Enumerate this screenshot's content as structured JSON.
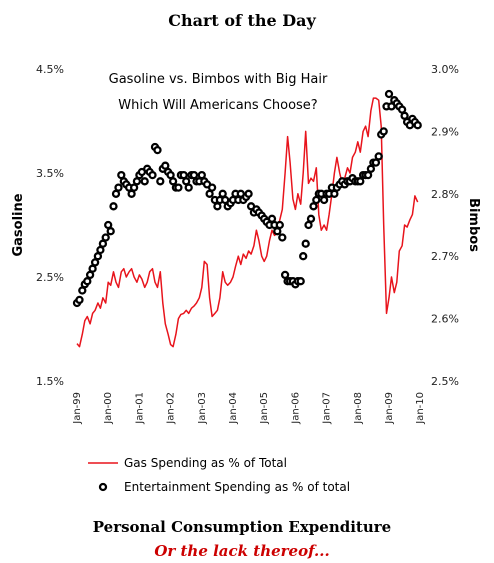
{
  "chart_data": {
    "type": "line",
    "title": "Chart of the Day",
    "annotation": [
      "Gasoline vs. Bimbos with Big Hair",
      "Which Will Americans Choose?"
    ],
    "footer_title": "Personal Consumption Expenditure",
    "footer_subtitle": "Or the lack thereof...",
    "ylabel_left": "Gasoline",
    "ylabel_right": "Bimbos",
    "ylim_left": [
      1.5,
      4.5
    ],
    "ylim_right": [
      2.5,
      3.0
    ],
    "yticks_left": [
      "1.5%",
      "2.5%",
      "3.5%",
      "4.5%"
    ],
    "yticks_right": [
      "2.5%",
      "2.6%",
      "2.7%",
      "2.8%",
      "2.9%",
      "3.0%"
    ],
    "xticks": [
      "Jan-99",
      "Jan-00",
      "Jan-01",
      "Jan-02",
      "Jan-03",
      "Jan-04",
      "Jan-05",
      "Jan-06",
      "Jan-07",
      "Jan-08",
      "Jan-09",
      "Jan-10"
    ],
    "grid": false,
    "legend_position": "bottom",
    "colors": {
      "gas": "#e8141c",
      "entertainment": "#000000",
      "subtitle": "#cc0000"
    },
    "series": [
      {
        "name": "Gas Spending as % of Total",
        "axis": "left",
        "style": "line",
        "points": [
          [
            1999.0,
            1.86
          ],
          [
            1999.08,
            1.83
          ],
          [
            1999.17,
            1.95
          ],
          [
            1999.25,
            2.08
          ],
          [
            1999.33,
            2.12
          ],
          [
            1999.42,
            2.05
          ],
          [
            1999.5,
            2.15
          ],
          [
            1999.58,
            2.18
          ],
          [
            1999.67,
            2.25
          ],
          [
            1999.75,
            2.2
          ],
          [
            1999.83,
            2.3
          ],
          [
            1999.92,
            2.25
          ],
          [
            2000.0,
            2.45
          ],
          [
            2000.08,
            2.42
          ],
          [
            2000.17,
            2.55
          ],
          [
            2000.25,
            2.45
          ],
          [
            2000.33,
            2.4
          ],
          [
            2000.42,
            2.55
          ],
          [
            2000.5,
            2.58
          ],
          [
            2000.58,
            2.5
          ],
          [
            2000.67,
            2.55
          ],
          [
            2000.75,
            2.58
          ],
          [
            2000.83,
            2.5
          ],
          [
            2000.92,
            2.45
          ],
          [
            2001.0,
            2.52
          ],
          [
            2001.08,
            2.48
          ],
          [
            2001.17,
            2.4
          ],
          [
            2001.25,
            2.45
          ],
          [
            2001.33,
            2.55
          ],
          [
            2001.42,
            2.58
          ],
          [
            2001.5,
            2.45
          ],
          [
            2001.58,
            2.4
          ],
          [
            2001.67,
            2.55
          ],
          [
            2001.75,
            2.25
          ],
          [
            2001.83,
            2.05
          ],
          [
            2001.92,
            1.95
          ],
          [
            2002.0,
            1.85
          ],
          [
            2002.08,
            1.83
          ],
          [
            2002.17,
            1.95
          ],
          [
            2002.25,
            2.1
          ],
          [
            2002.33,
            2.14
          ],
          [
            2002.42,
            2.15
          ],
          [
            2002.5,
            2.18
          ],
          [
            2002.58,
            2.15
          ],
          [
            2002.67,
            2.2
          ],
          [
            2002.75,
            2.22
          ],
          [
            2002.83,
            2.25
          ],
          [
            2002.92,
            2.3
          ],
          [
            2003.0,
            2.4
          ],
          [
            2003.08,
            2.65
          ],
          [
            2003.17,
            2.62
          ],
          [
            2003.25,
            2.3
          ],
          [
            2003.33,
            2.12
          ],
          [
            2003.42,
            2.15
          ],
          [
            2003.5,
            2.18
          ],
          [
            2003.58,
            2.3
          ],
          [
            2003.67,
            2.55
          ],
          [
            2003.75,
            2.45
          ],
          [
            2003.83,
            2.42
          ],
          [
            2003.92,
            2.45
          ],
          [
            2004.0,
            2.5
          ],
          [
            2004.08,
            2.6
          ],
          [
            2004.17,
            2.7
          ],
          [
            2004.25,
            2.62
          ],
          [
            2004.33,
            2.72
          ],
          [
            2004.42,
            2.68
          ],
          [
            2004.5,
            2.75
          ],
          [
            2004.58,
            2.72
          ],
          [
            2004.67,
            2.8
          ],
          [
            2004.75,
            2.95
          ],
          [
            2004.83,
            2.85
          ],
          [
            2004.92,
            2.7
          ],
          [
            2005.0,
            2.65
          ],
          [
            2005.08,
            2.7
          ],
          [
            2005.17,
            2.85
          ],
          [
            2005.25,
            2.95
          ],
          [
            2005.33,
            2.9
          ],
          [
            2005.42,
            2.92
          ],
          [
            2005.5,
            3.05
          ],
          [
            2005.58,
            3.15
          ],
          [
            2005.67,
            3.5
          ],
          [
            2005.75,
            3.85
          ],
          [
            2005.83,
            3.6
          ],
          [
            2005.92,
            3.25
          ],
          [
            2006.0,
            3.15
          ],
          [
            2006.08,
            3.3
          ],
          [
            2006.17,
            3.2
          ],
          [
            2006.25,
            3.5
          ],
          [
            2006.33,
            3.9
          ],
          [
            2006.42,
            3.4
          ],
          [
            2006.5,
            3.45
          ],
          [
            2006.58,
            3.42
          ],
          [
            2006.67,
            3.55
          ],
          [
            2006.75,
            3.1
          ],
          [
            2006.83,
            2.95
          ],
          [
            2006.92,
            3.0
          ],
          [
            2007.0,
            2.95
          ],
          [
            2007.08,
            3.1
          ],
          [
            2007.17,
            3.3
          ],
          [
            2007.25,
            3.5
          ],
          [
            2007.33,
            3.65
          ],
          [
            2007.42,
            3.5
          ],
          [
            2007.5,
            3.4
          ],
          [
            2007.58,
            3.45
          ],
          [
            2007.67,
            3.55
          ],
          [
            2007.75,
            3.5
          ],
          [
            2007.83,
            3.65
          ],
          [
            2007.92,
            3.7
          ],
          [
            2008.0,
            3.8
          ],
          [
            2008.08,
            3.7
          ],
          [
            2008.17,
            3.9
          ],
          [
            2008.25,
            3.95
          ],
          [
            2008.33,
            3.85
          ],
          [
            2008.42,
            4.1
          ],
          [
            2008.5,
            4.22
          ],
          [
            2008.58,
            4.22
          ],
          [
            2008.67,
            4.2
          ],
          [
            2008.75,
            3.95
          ],
          [
            2008.83,
            3.0
          ],
          [
            2008.92,
            2.15
          ],
          [
            2009.0,
            2.3
          ],
          [
            2009.08,
            2.5
          ],
          [
            2009.17,
            2.35
          ],
          [
            2009.25,
            2.45
          ],
          [
            2009.33,
            2.75
          ],
          [
            2009.42,
            2.8
          ],
          [
            2009.5,
            3.0
          ],
          [
            2009.58,
            2.98
          ],
          [
            2009.67,
            3.05
          ],
          [
            2009.75,
            3.1
          ],
          [
            2009.83,
            3.28
          ],
          [
            2009.92,
            3.22
          ]
        ]
      },
      {
        "name": "Entertainment Spending as % of total",
        "axis": "right",
        "style": "markers",
        "points": [
          [
            1999.0,
            2.625
          ],
          [
            1999.08,
            2.63
          ],
          [
            1999.17,
            2.645
          ],
          [
            1999.25,
            2.655
          ],
          [
            1999.33,
            2.66
          ],
          [
            1999.42,
            2.67
          ],
          [
            1999.5,
            2.68
          ],
          [
            1999.58,
            2.69
          ],
          [
            1999.67,
            2.7
          ],
          [
            1999.75,
            2.71
          ],
          [
            1999.83,
            2.72
          ],
          [
            1999.92,
            2.73
          ],
          [
            2000.0,
            2.75
          ],
          [
            2000.08,
            2.74
          ],
          [
            2000.17,
            2.78
          ],
          [
            2000.25,
            2.8
          ],
          [
            2000.33,
            2.81
          ],
          [
            2000.42,
            2.83
          ],
          [
            2000.5,
            2.82
          ],
          [
            2000.58,
            2.815
          ],
          [
            2000.67,
            2.81
          ],
          [
            2000.75,
            2.8
          ],
          [
            2000.83,
            2.81
          ],
          [
            2000.92,
            2.82
          ],
          [
            2001.0,
            2.83
          ],
          [
            2001.08,
            2.835
          ],
          [
            2001.17,
            2.82
          ],
          [
            2001.25,
            2.84
          ],
          [
            2001.33,
            2.835
          ],
          [
            2001.42,
            2.83
          ],
          [
            2001.5,
            2.875
          ],
          [
            2001.58,
            2.87
          ],
          [
            2001.67,
            2.82
          ],
          [
            2001.75,
            2.84
          ],
          [
            2001.83,
            2.845
          ],
          [
            2001.92,
            2.835
          ],
          [
            2002.0,
            2.83
          ],
          [
            2002.08,
            2.82
          ],
          [
            2002.17,
            2.81
          ],
          [
            2002.25,
            2.81
          ],
          [
            2002.33,
            2.83
          ],
          [
            2002.42,
            2.83
          ],
          [
            2002.5,
            2.82
          ],
          [
            2002.58,
            2.81
          ],
          [
            2002.67,
            2.83
          ],
          [
            2002.75,
            2.83
          ],
          [
            2002.83,
            2.82
          ],
          [
            2002.92,
            2.82
          ],
          [
            2003.0,
            2.83
          ],
          [
            2003.08,
            2.82
          ],
          [
            2003.17,
            2.815
          ],
          [
            2003.25,
            2.8
          ],
          [
            2003.33,
            2.81
          ],
          [
            2003.42,
            2.79
          ],
          [
            2003.5,
            2.78
          ],
          [
            2003.58,
            2.79
          ],
          [
            2003.67,
            2.8
          ],
          [
            2003.75,
            2.79
          ],
          [
            2003.83,
            2.78
          ],
          [
            2003.92,
            2.785
          ],
          [
            2004.0,
            2.79
          ],
          [
            2004.08,
            2.8
          ],
          [
            2004.17,
            2.79
          ],
          [
            2004.25,
            2.8
          ],
          [
            2004.33,
            2.79
          ],
          [
            2004.42,
            2.795
          ],
          [
            2004.5,
            2.8
          ],
          [
            2004.58,
            2.78
          ],
          [
            2004.67,
            2.77
          ],
          [
            2004.75,
            2.775
          ],
          [
            2004.83,
            2.77
          ],
          [
            2004.92,
            2.765
          ],
          [
            2005.0,
            2.76
          ],
          [
            2005.08,
            2.755
          ],
          [
            2005.17,
            2.75
          ],
          [
            2005.25,
            2.76
          ],
          [
            2005.33,
            2.75
          ],
          [
            2005.42,
            2.74
          ],
          [
            2005.5,
            2.75
          ],
          [
            2005.58,
            2.73
          ],
          [
            2005.67,
            2.67
          ],
          [
            2005.75,
            2.66
          ],
          [
            2005.83,
            2.66
          ],
          [
            2005.92,
            2.66
          ],
          [
            2006.0,
            2.655
          ],
          [
            2006.08,
            2.66
          ],
          [
            2006.17,
            2.66
          ],
          [
            2006.25,
            2.7
          ],
          [
            2006.33,
            2.72
          ],
          [
            2006.42,
            2.75
          ],
          [
            2006.5,
            2.76
          ],
          [
            2006.58,
            2.78
          ],
          [
            2006.67,
            2.79
          ],
          [
            2006.75,
            2.8
          ],
          [
            2006.83,
            2.8
          ],
          [
            2006.92,
            2.79
          ],
          [
            2007.0,
            2.8
          ],
          [
            2007.08,
            2.8
          ],
          [
            2007.17,
            2.81
          ],
          [
            2007.25,
            2.8
          ],
          [
            2007.33,
            2.81
          ],
          [
            2007.42,
            2.815
          ],
          [
            2007.5,
            2.82
          ],
          [
            2007.58,
            2.815
          ],
          [
            2007.67,
            2.82
          ],
          [
            2007.75,
            2.82
          ],
          [
            2007.83,
            2.825
          ],
          [
            2007.92,
            2.82
          ],
          [
            2008.0,
            2.82
          ],
          [
            2008.08,
            2.82
          ],
          [
            2008.17,
            2.83
          ],
          [
            2008.25,
            2.83
          ],
          [
            2008.33,
            2.83
          ],
          [
            2008.42,
            2.84
          ],
          [
            2008.5,
            2.85
          ],
          [
            2008.58,
            2.85
          ],
          [
            2008.67,
            2.86
          ],
          [
            2008.75,
            2.895
          ],
          [
            2008.83,
            2.9
          ],
          [
            2008.92,
            2.94
          ],
          [
            2009.0,
            2.96
          ],
          [
            2009.08,
            2.94
          ],
          [
            2009.17,
            2.95
          ],
          [
            2009.25,
            2.945
          ],
          [
            2009.33,
            2.94
          ],
          [
            2009.42,
            2.935
          ],
          [
            2009.5,
            2.925
          ],
          [
            2009.58,
            2.915
          ],
          [
            2009.67,
            2.91
          ],
          [
            2009.75,
            2.92
          ],
          [
            2009.83,
            2.915
          ],
          [
            2009.92,
            2.91
          ]
        ]
      }
    ]
  }
}
